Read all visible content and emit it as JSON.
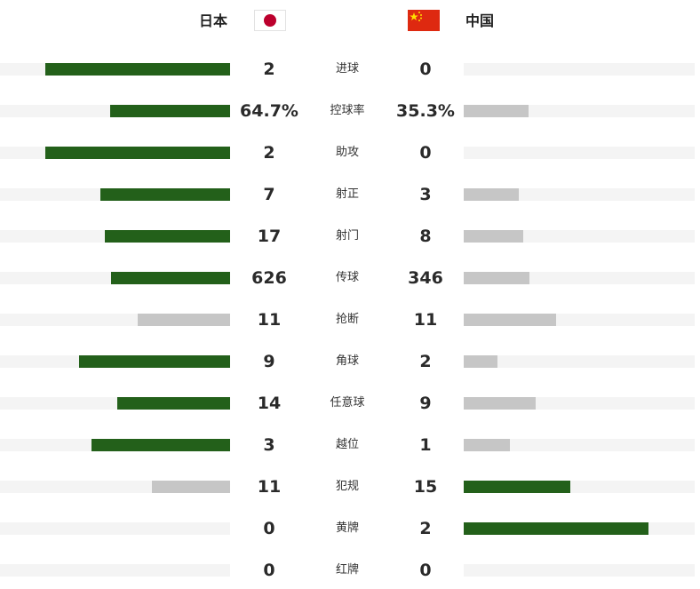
{
  "teams": {
    "home": {
      "name": "日本",
      "flag": "japan-flag"
    },
    "away": {
      "name": "中国",
      "flag": "china-flag"
    }
  },
  "colors": {
    "leading_bar": "#23601a",
    "trailing_bar": "#c6c6c6",
    "track": "#f4f4f4"
  },
  "stats": [
    {
      "label": "进球",
      "home": "2",
      "away": "0",
      "home_share": 1.0,
      "away_share": 0.0
    },
    {
      "label": "控球率",
      "home": "64.7%",
      "away": "35.3%",
      "home_share": 0.647,
      "away_share": 0.353
    },
    {
      "label": "助攻",
      "home": "2",
      "away": "0",
      "home_share": 1.0,
      "away_share": 0.0
    },
    {
      "label": "射正",
      "home": "7",
      "away": "3",
      "home_share": 0.7,
      "away_share": 0.3
    },
    {
      "label": "射门",
      "home": "17",
      "away": "8",
      "home_share": 0.68,
      "away_share": 0.32
    },
    {
      "label": "传球",
      "home": "626",
      "away": "346",
      "home_share": 0.644,
      "away_share": 0.356
    },
    {
      "label": "抢断",
      "home": "11",
      "away": "11",
      "home_share": 0.5,
      "away_share": 0.5
    },
    {
      "label": "角球",
      "home": "9",
      "away": "2",
      "home_share": 0.818,
      "away_share": 0.182
    },
    {
      "label": "任意球",
      "home": "14",
      "away": "9",
      "home_share": 0.609,
      "away_share": 0.391
    },
    {
      "label": "越位",
      "home": "3",
      "away": "1",
      "home_share": 0.75,
      "away_share": 0.25
    },
    {
      "label": "犯规",
      "home": "11",
      "away": "15",
      "home_share": 0.423,
      "away_share": 0.577
    },
    {
      "label": "黄牌",
      "home": "0",
      "away": "2",
      "home_share": 0.0,
      "away_share": 1.0
    },
    {
      "label": "红牌",
      "home": "0",
      "away": "0",
      "home_share": 0.0,
      "away_share": 0.0
    }
  ]
}
